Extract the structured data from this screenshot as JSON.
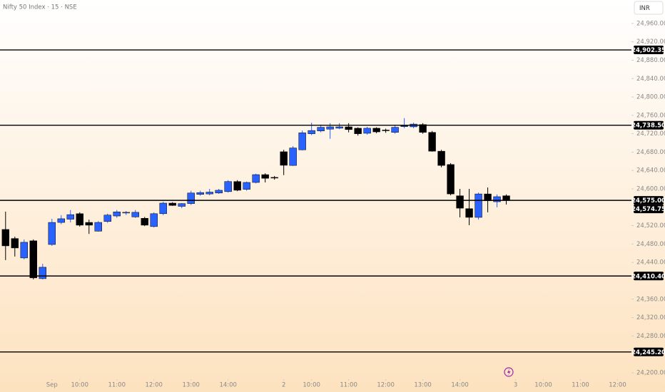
{
  "chart_data": {
    "type": "candlestick",
    "title": "Nifty 50 Index · 15 · NSE",
    "currency": "INR",
    "up_color": "#2962ff",
    "down_color": "#000000",
    "open": [
      24511.7,
      24492,
      24449.7,
      24487,
      24404.7,
      24479,
      24527,
      24534,
      24546,
      24527,
      24508,
      24529,
      24541,
      24548,
      24539,
      24536,
      24518,
      24546,
      24569,
      24562,
      24568,
      24588,
      24589,
      24591,
      24594,
      24616,
      24599,
      24614,
      24631,
      24625,
      24680.8,
      24651,
      24685,
      24720,
      24726,
      24730,
      24732,
      24735,
      24732,
      24721,
      24732,
      24728,
      24723,
      24736,
      24735,
      24740,
      24723,
      24682,
      24653,
      24585,
      24557,
      24538,
      24589,
      24572,
      24585
    ],
    "high": [
      24550.5,
      24496,
      24490,
      24490,
      24437,
      24535,
      24543,
      24554,
      24549,
      24533,
      24530,
      24546,
      24554,
      24552,
      24554,
      24539,
      24549,
      24572,
      24571,
      24569,
      24596,
      24596,
      24600,
      24600,
      24619,
      24619,
      24616,
      24633,
      24634,
      24628,
      24685,
      24693,
      24727,
      24744,
      24740,
      24743,
      24743,
      24743,
      24734,
      24735,
      24734,
      24731,
      24738,
      24754,
      24744,
      24743,
      24726,
      24685,
      24656,
      24600,
      24600,
      24592,
      24603,
      24588,
      24588
    ],
    "low": [
      24445,
      24452.8,
      24446.6,
      24403,
      24403,
      24476,
      24523,
      24527,
      24518,
      24502,
      24507,
      24526,
      24537,
      24543,
      24537,
      24519,
      24516,
      24543,
      24563,
      24558,
      24565,
      24585,
      24586,
      24589,
      24592,
      24595,
      24596,
      24612,
      24614,
      24620,
      24630,
      24650,
      24684,
      24717,
      24723,
      24709,
      24730,
      24723,
      24716,
      24718,
      24721,
      24722,
      24720,
      24732,
      24732,
      24720,
      24681,
      24647,
      24586,
      24538,
      24521,
      24533,
      24549,
      24560,
      24566
    ],
    "close": [
      24476,
      24471.4,
      24483.8,
      24406.3,
      24429.5,
      24527,
      24535,
      24544,
      24521,
      24521,
      24527,
      24543,
      24550,
      24549,
      24549,
      24521,
      24546,
      24569,
      24564,
      24568,
      24591,
      24592,
      24593,
      24597,
      24616,
      24597,
      24614,
      24631,
      24623,
      24624,
      24651.3,
      24689,
      24722,
      24727,
      24734,
      24735,
      24735,
      24729,
      24720,
      24732,
      24724,
      24727,
      24734,
      24737,
      24741,
      24723,
      24682,
      24651,
      24589,
      24558,
      24538,
      24589,
      24574,
      24583,
      24574.75
    ],
    "xlim": [
      -0.6,
      67.5
    ],
    "xticks": [
      {
        "value": 5,
        "label": "Sep"
      },
      {
        "value": 8,
        "label": "10:00"
      },
      {
        "value": 12,
        "label": "11:00"
      },
      {
        "value": 16,
        "label": "12:00"
      },
      {
        "value": 20,
        "label": "13:00"
      },
      {
        "value": 24,
        "label": "14:00"
      },
      {
        "value": 30,
        "label": "2"
      },
      {
        "value": 33,
        "label": "10:00"
      },
      {
        "value": 37,
        "label": "11:00"
      },
      {
        "value": 41,
        "label": "12:00"
      },
      {
        "value": 45,
        "label": "13:00"
      },
      {
        "value": 49,
        "label": "14:00"
      },
      {
        "value": 55,
        "label": "3"
      },
      {
        "value": 58,
        "label": "10:00"
      },
      {
        "value": 62,
        "label": "11:00"
      },
      {
        "value": 66,
        "label": "12:00"
      }
    ],
    "ylim": [
      24158,
      25011
    ],
    "yticks": [
      {
        "value": 24960,
        "label": "24,960.00"
      },
      {
        "value": 24920,
        "label": "24,920.00"
      },
      {
        "value": 24880,
        "label": "24,880.00"
      },
      {
        "value": 24840,
        "label": "24,840.00"
      },
      {
        "value": 24800,
        "label": "24,800.00"
      },
      {
        "value": 24760,
        "label": "24,760.00"
      },
      {
        "value": 24720,
        "label": "24,720.00"
      },
      {
        "value": 24680,
        "label": "24,680.00"
      },
      {
        "value": 24640,
        "label": "24,640.00"
      },
      {
        "value": 24600,
        "label": "24,600.00"
      },
      {
        "value": 24520,
        "label": "24,520.00"
      },
      {
        "value": 24480,
        "label": "24,480.00"
      },
      {
        "value": 24440,
        "label": "24,440.00"
      },
      {
        "value": 24360,
        "label": "24,360.00"
      },
      {
        "value": 24320,
        "label": "24,320.00"
      },
      {
        "value": 24280,
        "label": "24,280.00"
      },
      {
        "value": 24200,
        "label": "24,200.00"
      }
    ],
    "hlines": [
      {
        "value": 24902.35,
        "label": "24,902.35"
      },
      {
        "value": 24738.5,
        "label": "24,738.50"
      },
      {
        "value": 24575,
        "label": "24,575.00"
      },
      {
        "value": 24410.4,
        "label": "24,410.40"
      },
      {
        "value": 24245.2,
        "label": "24,245.20"
      }
    ],
    "last_price": {
      "value": 24574.75,
      "label": "24,574.75"
    }
  }
}
